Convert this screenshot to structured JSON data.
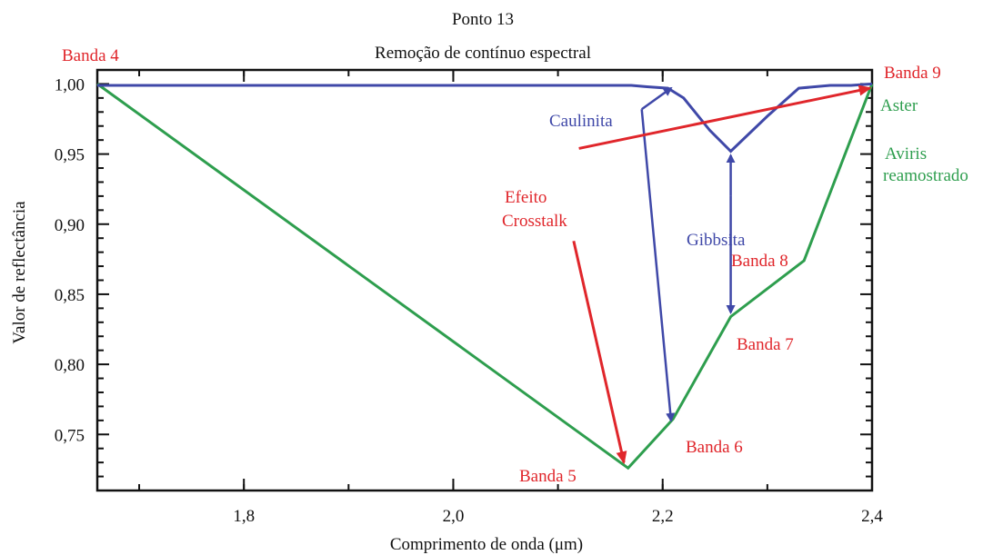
{
  "chart_data": {
    "type": "line",
    "title": "Ponto 13",
    "subtitle": "Remoção de contínuo espectral",
    "xlabel": "Comprimento de onda (μm)",
    "ylabel": "Valor de reflectância",
    "xlim": [
      1.66,
      2.4
    ],
    "ylim": [
      0.71,
      1.01
    ],
    "xticks": [
      {
        "v": 1.8,
        "label": "1,8"
      },
      {
        "v": 2.0,
        "label": "2,0"
      },
      {
        "v": 2.2,
        "label": "2,2"
      },
      {
        "v": 2.4,
        "label": "2,4"
      }
    ],
    "yticks": [
      {
        "v": 0.75,
        "label": "0,75"
      },
      {
        "v": 0.8,
        "label": "0,80"
      },
      {
        "v": 0.85,
        "label": "0,85"
      },
      {
        "v": 0.9,
        "label": "0,90"
      },
      {
        "v": 0.95,
        "label": "0,95"
      },
      {
        "v": 1.0,
        "label": "1,00"
      }
    ],
    "grid": false,
    "series": [
      {
        "name": "Aster",
        "color": "#2e9e4e",
        "x": [
          1.66,
          2.167,
          2.21,
          2.265,
          2.335,
          2.4
        ],
        "y": [
          1.0,
          0.726,
          0.761,
          0.834,
          0.874,
          1.0
        ]
      },
      {
        "name": "Aviris reamostrado",
        "color": "#3f48a8",
        "x": [
          1.66,
          2.17,
          2.185,
          2.205,
          2.22,
          2.245,
          2.265,
          2.3,
          2.33,
          2.36,
          2.38,
          2.4
        ],
        "y": [
          0.999,
          0.999,
          0.998,
          0.997,
          0.99,
          0.967,
          0.952,
          0.977,
          0.997,
          0.999,
          0.999,
          1.0
        ]
      }
    ],
    "band_labels": [
      {
        "text": "Banda 4",
        "color": "#e0262b"
      },
      {
        "text": "Banda 5",
        "color": "#e0262b"
      },
      {
        "text": "Banda 6",
        "color": "#e0262b"
      },
      {
        "text": "Banda 7",
        "color": "#e0262b"
      },
      {
        "text": "Banda 8",
        "color": "#e0262b"
      },
      {
        "text": "Banda 9",
        "color": "#e0262b"
      }
    ],
    "annotations": [
      {
        "text": "Caulinita",
        "color": "#3f48a8"
      },
      {
        "text": "Gibbsita",
        "color": "#3f48a8"
      },
      {
        "text": "Efeito",
        "color": "#e0262b"
      },
      {
        "text": "Crosstalk",
        "color": "#e0262b"
      },
      {
        "text": "Aster",
        "color": "#2e9e4e"
      },
      {
        "text": "Aviris",
        "color": "#2e9e4e"
      },
      {
        "text": "reamostrado",
        "color": "#2e9e4e"
      }
    ],
    "arrows": [
      {
        "name": "caulinita-arrow-up",
        "color": "#3f48a8",
        "from": [
          2.18,
          0.982
        ],
        "to": [
          2.208,
          0.997
        ]
      },
      {
        "name": "caulinita-arrow-down",
        "color": "#3f48a8",
        "from": [
          2.18,
          0.982
        ],
        "to": [
          2.208,
          0.76
        ]
      },
      {
        "name": "gibbsita-arrow-up",
        "color": "#3f48a8",
        "from": [
          2.265,
          0.92
        ],
        "to": [
          2.265,
          0.949
        ]
      },
      {
        "name": "gibbsita-arrow-down",
        "color": "#3f48a8",
        "from": [
          2.265,
          0.92
        ],
        "to": [
          2.265,
          0.837
        ]
      },
      {
        "name": "crosstalk-arrow-banda9",
        "color": "#e0262b",
        "from": [
          2.12,
          0.954
        ],
        "to": [
          2.398,
          0.997
        ]
      },
      {
        "name": "crosstalk-arrow-banda5",
        "color": "#e0262b",
        "from": [
          2.115,
          0.888
        ],
        "to": [
          2.163,
          0.73
        ]
      }
    ]
  }
}
